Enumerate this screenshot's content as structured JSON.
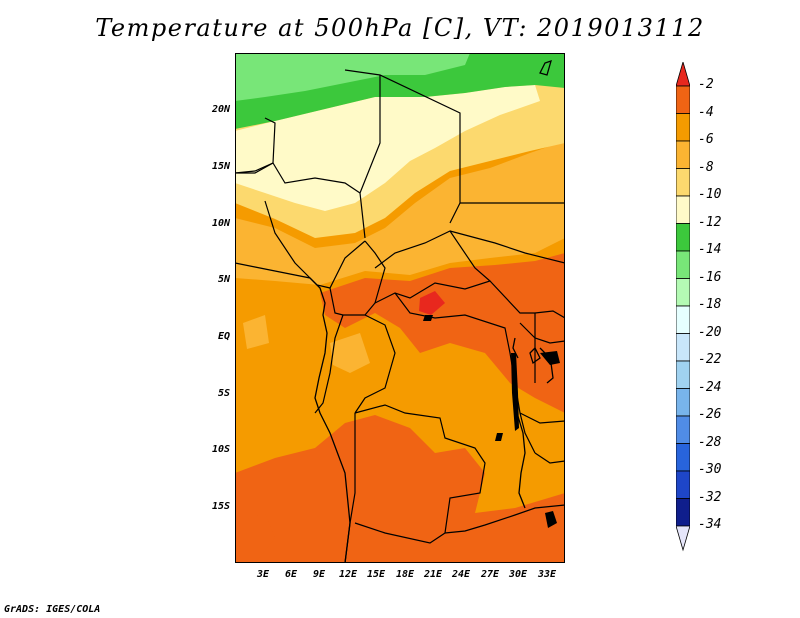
{
  "title": "Temperature at 500hPa [C], VT: 2019013112",
  "credit": "GrADS: IGES/COLA",
  "lat_labels": [
    "20N",
    "15N",
    "10N",
    "5N",
    "EQ",
    "5S",
    "10S",
    "15S"
  ],
  "lon_labels": [
    "3E",
    "6E",
    "9E",
    "12E",
    "15E",
    "18E",
    "21E",
    "24E",
    "27E",
    "30E",
    "33E"
  ],
  "colorbar": {
    "labels": [
      "-2",
      "-4",
      "-6",
      "-8",
      "-10",
      "-12",
      "-14",
      "-16",
      "-18",
      "-20",
      "-22",
      "-24",
      "-26",
      "-28",
      "-30",
      "-32",
      "-34"
    ],
    "colors": [
      "#e8281e",
      "#f06414",
      "#f59b00",
      "#fbb432",
      "#fcd96e",
      "#fffac8",
      "#3cc83c",
      "#78e678",
      "#b4fab4",
      "#e6ffff",
      "#c8e6fa",
      "#a0d2f0",
      "#78b4eb",
      "#508ce6",
      "#2864dc",
      "#1e46c8",
      "#0f1e8c",
      "#e6e6fa"
    ]
  },
  "colors": {
    "c_neg8_neg10": "#fcd96e",
    "c_neg10_neg12": "#fffac8",
    "c_neg6_neg8": "#fbb432",
    "c_neg4_neg6": "#f59b00",
    "c_neg2_neg4": "#f06414",
    "c_neg12_neg14": "#3cc83c",
    "c_neg14_neg16": "#78e678",
    "c_warm": "#e8281e"
  }
}
